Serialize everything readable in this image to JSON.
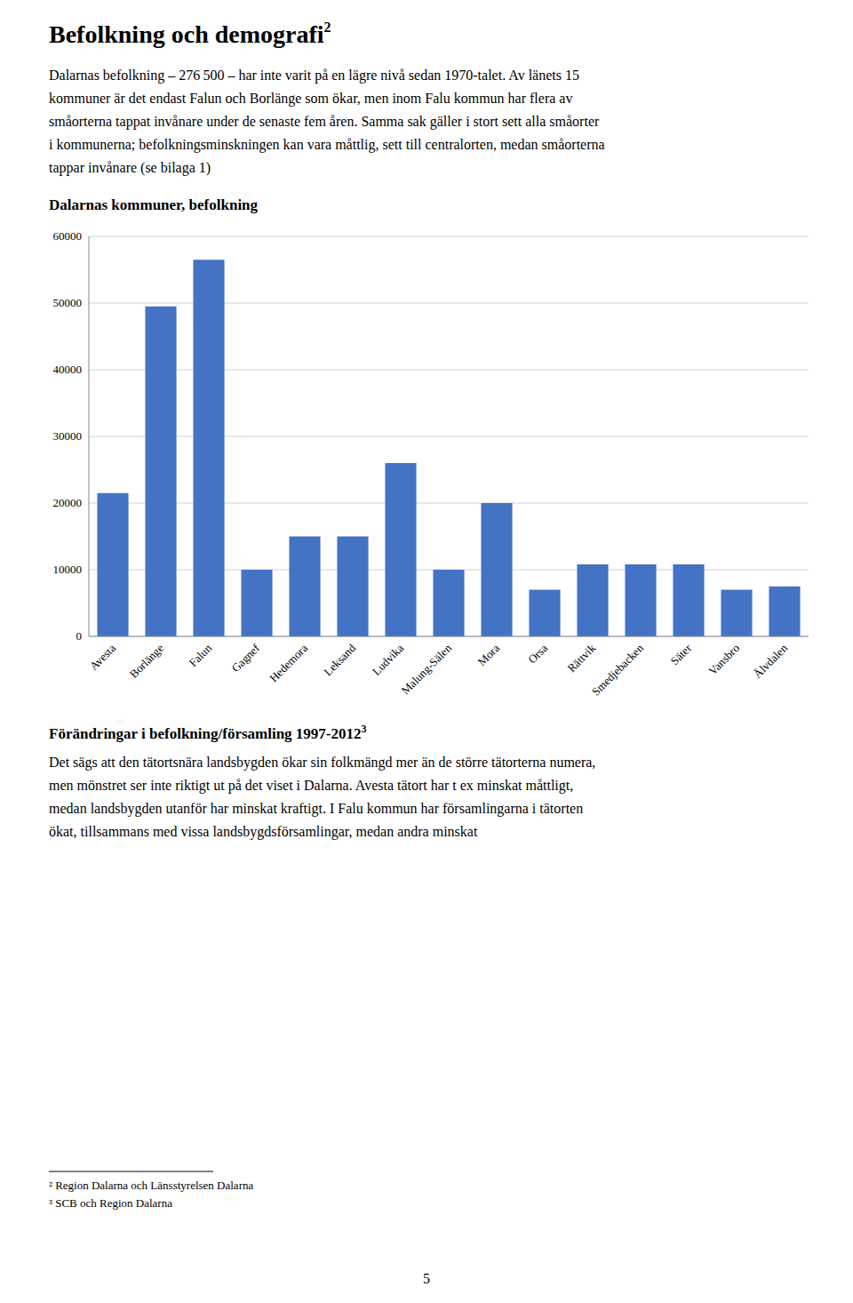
{
  "heading": "Befolkning och demografi",
  "heading_super": "2",
  "para1_lines": [
    "Dalarnas befolkning – 276 500 – har inte varit på en lägre nivå sedan 1970-talet. Av länets 15",
    "kommuner är det endast Falun och Borlänge som ökar, men inom Falu kommun har flera av",
    "småorterna tappat invånare under de senaste fem åren. Samma sak gäller i stort sett alla småorter",
    "i kommunerna; befolkningsminskningen kan vara måttlig, sett till centralorten, medan småorterna",
    "tappar invånare (se bilaga 1)"
  ],
  "chart_data": {
    "type": "bar",
    "title": "Dalarnas kommuner, befolkning",
    "categories": [
      "Avesta",
      "Borlänge",
      "Falun",
      "Gagnef",
      "Hedemora",
      "Leksand",
      "Ludvika",
      "Malung-Sälen",
      "Mora",
      "Orsa",
      "Rättvik",
      "Smedjebacken",
      "Säter",
      "Vansbro",
      "Älvdalen"
    ],
    "values": [
      21500,
      49500,
      56500,
      10000,
      15000,
      15000,
      26000,
      10000,
      20000,
      7000,
      10800,
      10800,
      10800,
      7000,
      7500
    ],
    "color": "#4472C4",
    "ylim": [
      0,
      60000
    ],
    "yticks": [
      0,
      10000,
      20000,
      30000,
      40000,
      50000,
      60000
    ],
    "grid": true
  },
  "section2_title": "Förändringar i befolkning/församling 1997-2012",
  "section2_super": "3",
  "para2_lines": [
    "Det sägs att den tätortsnära landsbygden ökar sin folkmängd mer än de större tätorterna numera,",
    "men mönstret ser inte riktigt ut på det viset i Dalarna. Avesta tätort har t ex minskat måttligt,",
    "medan landsbygden utanför har minskat kraftigt. I Falu kommun har församlingarna i tätorten",
    "ökat, tillsammans med vissa landsbygdsförsamlingar, medan andra minskat"
  ],
  "footnote1": "² Region Dalarna och Länsstyrelsen Dalarna",
  "footnote2": "³ SCB och Region Dalarna",
  "page_number": "5"
}
